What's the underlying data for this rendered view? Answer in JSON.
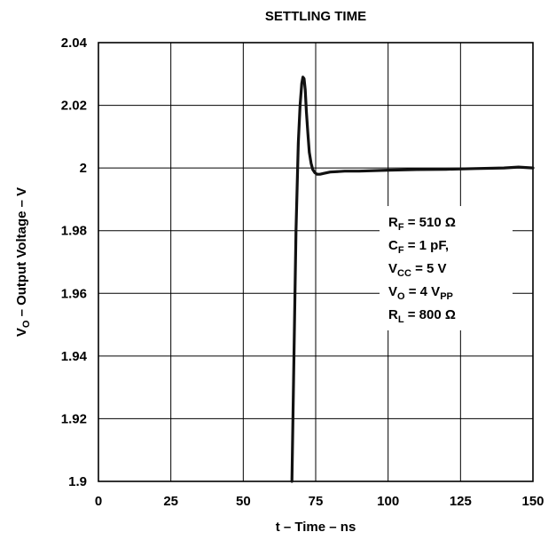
{
  "chart_data": {
    "type": "line",
    "title": "SETTLING TIME",
    "xlabel": "t – Time – ns",
    "ylabel": {
      "main": "V",
      "sub": "O",
      "rest": " – Output Voltage – V"
    },
    "xlim": [
      0,
      150
    ],
    "ylim": [
      1.9,
      2.04
    ],
    "xticks": [
      0,
      25,
      50,
      75,
      100,
      125,
      150
    ],
    "xtick_labels": [
      "0",
      "25",
      "50",
      "75",
      "100",
      "125",
      "150"
    ],
    "yticks": [
      1.9,
      1.92,
      1.94,
      1.96,
      1.98,
      2.0,
      2.02,
      2.04
    ],
    "ytick_labels": [
      "1.9",
      "1.92",
      "1.94",
      "1.96",
      "1.98",
      "2",
      "2.02",
      "2.04"
    ],
    "grid": true,
    "series": [
      {
        "x": [
          66.8,
          67.5,
          68.2,
          69.0,
          69.6,
          70.2,
          70.6,
          71.0,
          71.4,
          71.8,
          72.3,
          72.8,
          73.4,
          74.0,
          74.7,
          75.5,
          76.5,
          78.0,
          80,
          85,
          90,
          100,
          110,
          120,
          130,
          140,
          145,
          150
        ],
        "y": [
          1.9,
          1.94,
          1.98,
          2.008,
          2.02,
          2.027,
          2.029,
          2.0285,
          2.025,
          2.018,
          2.011,
          2.005,
          2.0015,
          1.9995,
          1.9985,
          1.998,
          1.998,
          1.9983,
          1.9987,
          1.999,
          1.999,
          1.9993,
          1.9995,
          1.9996,
          1.9998,
          2.0,
          2.0003,
          2.0
        ]
      }
    ],
    "annotation": [
      {
        "main": "R",
        "sub": "F",
        "rest": " = 510 Ω"
      },
      {
        "main": "C",
        "sub": "F",
        "rest": " = 1 pF,"
      },
      {
        "main": "V",
        "sub": "CC",
        "rest": " = 5 V"
      },
      {
        "main": "V",
        "sub": "O",
        "rest": " = 4 V",
        "sub2": "PP"
      },
      {
        "main": "R",
        "sub": "L",
        "rest": " = 800 Ω"
      }
    ]
  }
}
